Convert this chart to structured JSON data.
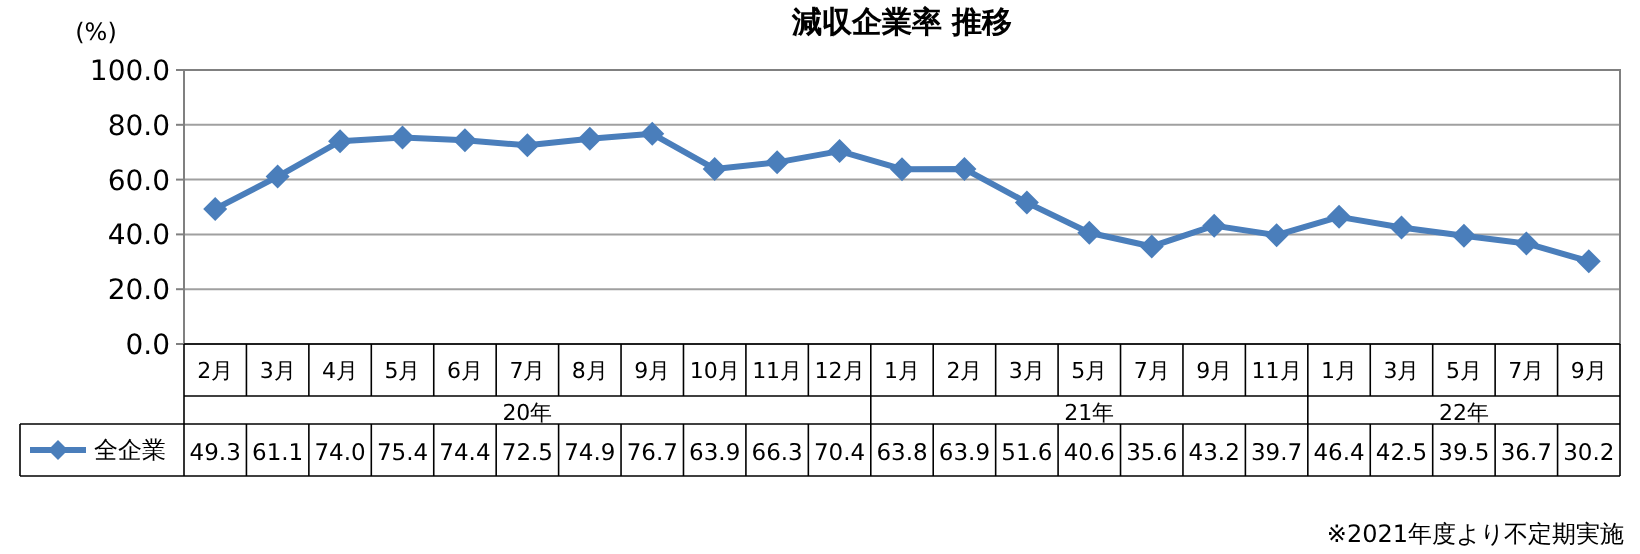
{
  "chart_data": {
    "type": "line",
    "title": "減収企業率 推移",
    "ylabel": "(%)",
    "categories": [
      "2月",
      "3月",
      "4月",
      "5月",
      "6月",
      "7月",
      "8月",
      "9月",
      "10月",
      "11月",
      "12月",
      "1月",
      "2月",
      "3月",
      "5月",
      "7月",
      "9月",
      "11月",
      "1月",
      "3月",
      "5月",
      "7月",
      "9月"
    ],
    "series": [
      {
        "name": "全企業",
        "color": "#4a7ebb",
        "values": [
          49.3,
          61.1,
          74.0,
          75.4,
          74.4,
          72.5,
          74.9,
          76.7,
          63.9,
          66.3,
          70.4,
          63.8,
          63.9,
          51.6,
          40.6,
          35.6,
          43.2,
          39.7,
          46.4,
          42.5,
          39.5,
          36.7,
          30.2
        ],
        "value_labels": [
          "49.3",
          "61.1",
          "74.0",
          "75.4",
          "74.4",
          "72.5",
          "74.9",
          "76.7",
          "63.9",
          "66.3",
          "70.4",
          "63.8",
          "63.9",
          "51.6",
          "40.6",
          "35.6",
          "43.2",
          "39.7",
          "46.4",
          "42.5",
          "39.5",
          "36.7",
          "30.2"
        ]
      }
    ],
    "ylim": [
      0,
      100
    ],
    "yticks": [
      {
        "value": 0,
        "label": "0.0"
      },
      {
        "value": 20,
        "label": "20.0"
      },
      {
        "value": 40,
        "label": "40.0"
      },
      {
        "value": 60,
        "label": "60.0"
      },
      {
        "value": 80,
        "label": "80.0"
      },
      {
        "value": 100,
        "label": "100.0"
      }
    ],
    "grid": "y",
    "marker": "diamond",
    "line_style": "solid",
    "legend": "bottom",
    "annotations": [
      "20年",
      "21年",
      "22年",
      "※2021年度より不定期実施"
    ]
  }
}
